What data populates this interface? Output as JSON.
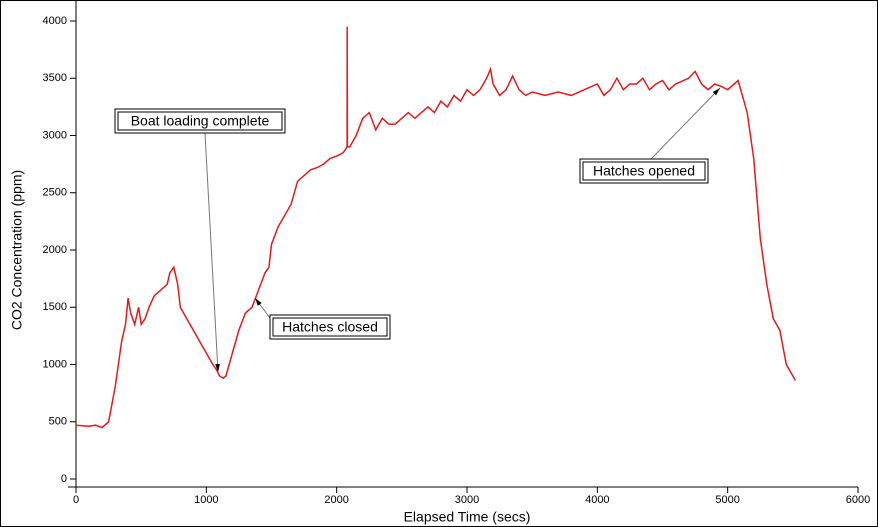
{
  "chart_data": {
    "type": "line",
    "xlabel": "Elapsed Time (secs)",
    "ylabel": "CO2 Concentration (ppm)",
    "xlim": [
      0,
      6000
    ],
    "xticks": [
      0,
      1000,
      2000,
      3000,
      4000,
      5000,
      6000
    ],
    "ylim": [
      0,
      4000
    ],
    "yticks": [
      0,
      500,
      1000,
      1500,
      2000,
      2500,
      3000,
      3500,
      4000
    ],
    "x": [
      0,
      100,
      150,
      200,
      250,
      300,
      350,
      380,
      400,
      420,
      450,
      480,
      500,
      530,
      560,
      600,
      650,
      700,
      720,
      750,
      780,
      800,
      850,
      900,
      950,
      1000,
      1050,
      1080,
      1100,
      1130,
      1150,
      1200,
      1250,
      1300,
      1350,
      1400,
      1450,
      1480,
      1500,
      1550,
      1600,
      1650,
      1700,
      1750,
      1800,
      1850,
      1900,
      1950,
      2000,
      2050,
      2080,
      2081,
      2082,
      2100,
      2150,
      2200,
      2250,
      2300,
      2350,
      2400,
      2450,
      2500,
      2550,
      2600,
      2650,
      2700,
      2750,
      2800,
      2850,
      2900,
      2950,
      3000,
      3050,
      3100,
      3150,
      3180,
      3200,
      3250,
      3300,
      3350,
      3400,
      3450,
      3500,
      3600,
      3700,
      3800,
      3900,
      4000,
      4050,
      4100,
      4150,
      4200,
      4250,
      4300,
      4350,
      4400,
      4450,
      4500,
      4550,
      4600,
      4700,
      4750,
      4800,
      4850,
      4900,
      4950,
      5000,
      5050,
      5080,
      5100,
      5150,
      5200,
      5250,
      5300,
      5350,
      5400,
      5450,
      5500,
      5520
    ],
    "series": [
      {
        "name": "CO2",
        "color": "#e41a1c",
        "values": [
          470,
          460,
          470,
          450,
          500,
          800,
          1200,
          1350,
          1580,
          1450,
          1350,
          1500,
          1350,
          1400,
          1500,
          1600,
          1650,
          1700,
          1800,
          1850,
          1700,
          1500,
          1400,
          1300,
          1200,
          1100,
          1000,
          950,
          900,
          880,
          900,
          1100,
          1300,
          1450,
          1500,
          1650,
          1800,
          1850,
          2050,
          2200,
          2300,
          2400,
          2600,
          2650,
          2700,
          2720,
          2750,
          2800,
          2820,
          2850,
          2900,
          3950,
          2900,
          2900,
          3000,
          3150,
          3200,
          3050,
          3150,
          3100,
          3100,
          3150,
          3200,
          3150,
          3200,
          3250,
          3200,
          3300,
          3250,
          3350,
          3300,
          3400,
          3350,
          3400,
          3500,
          3580,
          3450,
          3350,
          3400,
          3520,
          3400,
          3350,
          3380,
          3350,
          3380,
          3350,
          3400,
          3450,
          3350,
          3400,
          3500,
          3400,
          3450,
          3450,
          3500,
          3400,
          3450,
          3480,
          3400,
          3450,
          3500,
          3560,
          3450,
          3400,
          3450,
          3430,
          3400,
          3450,
          3480,
          3400,
          3200,
          2800,
          2100,
          1700,
          1400,
          1300,
          1000,
          900,
          860
        ]
      }
    ],
    "annotations": [
      "Boat loading complete",
      "Hatches closed",
      "Hatches opened"
    ]
  }
}
